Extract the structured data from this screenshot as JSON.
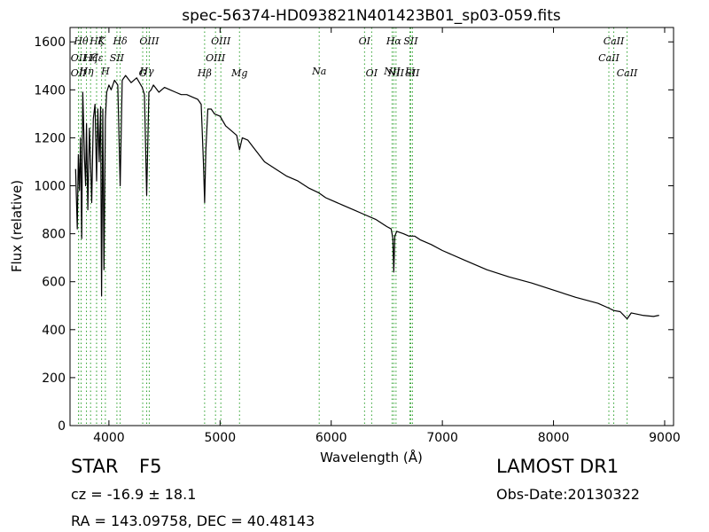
{
  "chart_data": {
    "type": "line",
    "title": "spec-56374-HD093821N401423B01_sp03-059.fits",
    "xlabel": "Wavelength (Å)",
    "ylabel": "Flux (relative)",
    "xlim": [
      3650,
      9080
    ],
    "ylim": [
      0,
      1660
    ],
    "xticks": [
      4000,
      5000,
      6000,
      7000,
      8000,
      9000
    ],
    "yticks": [
      0,
      200,
      400,
      600,
      800,
      1000,
      1200,
      1400,
      1600
    ],
    "grid": false,
    "line_color": "#000000",
    "marker_color": "#2ca02c",
    "series": [
      {
        "x": [
          3700,
          3715,
          3725,
          3735,
          3745,
          3755,
          3765,
          3780,
          3790,
          3798,
          3810,
          3825,
          3835,
          3845,
          3860,
          3875,
          3889,
          3900,
          3912,
          3925,
          3934,
          3945,
          3955,
          3968,
          3980,
          4000,
          4020,
          4050,
          4080,
          4101,
          4120,
          4150,
          4200,
          4250,
          4300,
          4320,
          4340,
          4360,
          4380,
          4400,
          4450,
          4500,
          4550,
          4600,
          4650,
          4700,
          4750,
          4800,
          4830,
          4850,
          4861,
          4872,
          4890,
          4920,
          4950,
          5000,
          5050,
          5100,
          5150,
          5175,
          5200,
          5250,
          5300,
          5400,
          5500,
          5600,
          5700,
          5800,
          5890,
          5950,
          6000,
          6100,
          6200,
          6300,
          6400,
          6500,
          6540,
          6555,
          6563,
          6572,
          6590,
          6650,
          6700,
          6750,
          6800,
          6900,
          7000,
          7200,
          7400,
          7600,
          7800,
          8000,
          8200,
          8400,
          8498,
          8542,
          8600,
          8662,
          8700,
          8800,
          8900,
          8950
        ],
        "y": [
          1070,
          820,
          1130,
          980,
          1200,
          780,
          1390,
          1120,
          1000,
          1260,
          900,
          1240,
          1100,
          930,
          1280,
          1340,
          1020,
          1320,
          1100,
          1330,
          540,
          1320,
          650,
          1280,
          1390,
          1420,
          1400,
          1440,
          1420,
          1000,
          1440,
          1460,
          1430,
          1450,
          1410,
          1380,
          960,
          1390,
          1400,
          1420,
          1390,
          1410,
          1400,
          1390,
          1380,
          1380,
          1370,
          1360,
          1340,
          1100,
          930,
          1150,
          1320,
          1320,
          1300,
          1290,
          1250,
          1230,
          1210,
          1150,
          1200,
          1190,
          1160,
          1100,
          1070,
          1040,
          1020,
          990,
          970,
          950,
          940,
          920,
          900,
          880,
          860,
          830,
          820,
          780,
          640,
          790,
          810,
          800,
          790,
          790,
          775,
          755,
          730,
          690,
          650,
          620,
          595,
          565,
          535,
          510,
          490,
          480,
          475,
          445,
          470,
          460,
          455,
          460
        ]
      }
    ],
    "lines": [
      {
        "wl": 3727,
        "label": "OII",
        "row": 1
      },
      {
        "wl": 3727,
        "label": "OII",
        "row": 3
      },
      {
        "wl": 3750,
        "label": "Hθ",
        "row": 0
      },
      {
        "wl": 3798,
        "label": "Hη",
        "row": 2
      },
      {
        "wl": 3835,
        "label": "Hζ",
        "row": 1
      },
      {
        "wl": 3889,
        "label": "Hζ",
        "row": 0
      },
      {
        "wl": 3889,
        "label": "Hε",
        "row": 1
      },
      {
        "wl": 3934,
        "label": "K",
        "row": 0
      },
      {
        "wl": 3968,
        "label": "H",
        "row": 2
      },
      {
        "wl": 4072,
        "label": "SII",
        "row": 1
      },
      {
        "wl": 4101,
        "label": "Hδ",
        "row": 0
      },
      {
        "wl": 4304,
        "label": "G",
        "row": 3
      },
      {
        "wl": 4340,
        "label": "Hγ",
        "row": 2
      },
      {
        "wl": 4363,
        "label": "OIII",
        "row": 0
      },
      {
        "wl": 4861,
        "label": "Hβ",
        "row": 3
      },
      {
        "wl": 4959,
        "label": "OIII",
        "row": 1
      },
      {
        "wl": 5007,
        "label": "OIII",
        "row": 0
      },
      {
        "wl": 5175,
        "label": "Mg",
        "row": 3
      },
      {
        "wl": 5892,
        "label": "Na",
        "row": 2
      },
      {
        "wl": 6300,
        "label": "OI",
        "row": 0
      },
      {
        "wl": 6364,
        "label": "OI",
        "row": 3
      },
      {
        "wl": 6548,
        "label": "NII",
        "row": 2
      },
      {
        "wl": 6563,
        "label": "Hα",
        "row": 0
      },
      {
        "wl": 6583,
        "label": "NII",
        "row": 3
      },
      {
        "wl": 6708,
        "label": "Li",
        "row": 2
      },
      {
        "wl": 6716,
        "label": "SII",
        "row": 0
      },
      {
        "wl": 6731,
        "label": "SII",
        "row": 3
      },
      {
        "wl": 8498,
        "label": "CaII",
        "row": 1
      },
      {
        "wl": 8542,
        "label": "CaII",
        "row": 0
      },
      {
        "wl": 8662,
        "label": "CaII",
        "row": 3
      }
    ]
  },
  "info": {
    "object_class": "STAR",
    "subclass": "F5",
    "redshift": "cz = -16.9 ± 18.1",
    "coordinates": "RA = 143.09758, DEC = 40.48143",
    "survey": "LAMOST DR1",
    "obs_date": "Obs-Date:20130322"
  }
}
